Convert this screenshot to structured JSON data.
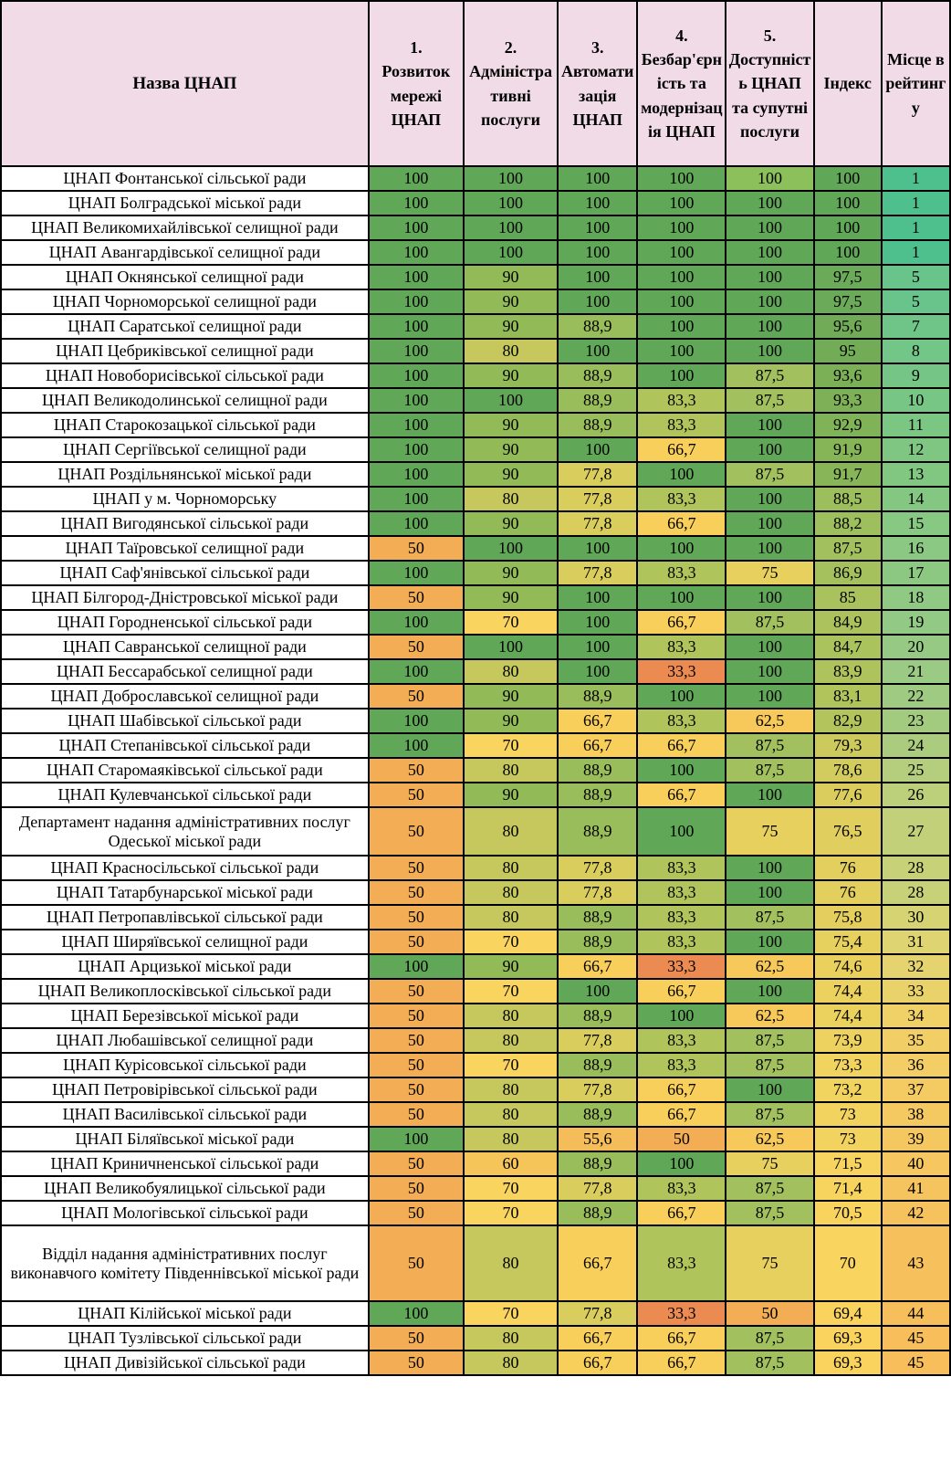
{
  "colors": {
    "header_bg": "#F0DBE6",
    "border": "#000000",
    "name_cell_bg": "#FFFFFF",
    "value_scale": [
      [
        33.3,
        "#EB8B51"
      ],
      [
        50,
        "#F3AE55"
      ],
      [
        55.6,
        "#F5BD59"
      ],
      [
        62.5,
        "#F7C95A"
      ],
      [
        66.7,
        "#F8CF5B"
      ],
      [
        70,
        "#F9D45E"
      ],
      [
        73,
        "#F2D35F"
      ],
      [
        75,
        "#E8D05E"
      ],
      [
        77.8,
        "#D9CD5E"
      ],
      [
        80,
        "#C6C85D"
      ],
      [
        83.3,
        "#B0C45C"
      ],
      [
        87.5,
        "#A2C05E"
      ],
      [
        88.9,
        "#9ABD5B"
      ],
      [
        90,
        "#92BA57"
      ],
      [
        95,
        "#73AC57"
      ],
      [
        100,
        "#61A758"
      ]
    ],
    "place_scale": [
      [
        1,
        "#4EC08E"
      ],
      [
        5,
        "#68C48A"
      ],
      [
        8,
        "#72C687"
      ],
      [
        12,
        "#7EC682"
      ],
      [
        16,
        "#8AC883"
      ],
      [
        20,
        "#95C984"
      ],
      [
        23,
        "#A3CB80"
      ],
      [
        26,
        "#BCCF7B"
      ],
      [
        28,
        "#C7D178"
      ],
      [
        31,
        "#DED471"
      ],
      [
        34,
        "#F0D167"
      ],
      [
        38,
        "#F5C962"
      ],
      [
        42,
        "#F6C25D"
      ],
      [
        45,
        "#F7BE5B"
      ]
    ],
    "overrides": [
      {
        "row": 0,
        "col": 4,
        "color": "#8CC05A"
      }
    ]
  },
  "chart_data": {
    "type": "table",
    "columns": [
      {
        "label": "Назва ЦНАП"
      },
      {
        "num": "1.",
        "label": "Розвиток мережі ЦНАП"
      },
      {
        "num": "2.",
        "label": "Адміністративні послуги"
      },
      {
        "num": "3.",
        "label": "Автоматизація ЦНАП"
      },
      {
        "num": "4.",
        "label": "Безбар'єрність та модернізація ЦНАП"
      },
      {
        "num": "5.",
        "label": "Доступність ЦНАП та супутні послуги"
      },
      {
        "label": "Індекс"
      },
      {
        "label": "Місце в рейтингу"
      }
    ],
    "rows": [
      {
        "name": "ЦНАП Фонтанської сільської ради",
        "values": [
          "100",
          "100",
          "100",
          "100",
          "100",
          "100"
        ],
        "place": "1"
      },
      {
        "name": "ЦНАП Болградської міської ради",
        "values": [
          "100",
          "100",
          "100",
          "100",
          "100",
          "100"
        ],
        "place": "1"
      },
      {
        "name": "ЦНАП Великомихайлівської селищної ради",
        "values": [
          "100",
          "100",
          "100",
          "100",
          "100",
          "100"
        ],
        "place": "1"
      },
      {
        "name": "ЦНАП Авангардівської селищної ради",
        "values": [
          "100",
          "100",
          "100",
          "100",
          "100",
          "100"
        ],
        "place": "1"
      },
      {
        "name": "ЦНАП Окнянської селищної ради",
        "values": [
          "100",
          "90",
          "100",
          "100",
          "100",
          "97,5"
        ],
        "place": "5"
      },
      {
        "name": "ЦНАП Чорноморської селищної ради",
        "values": [
          "100",
          "90",
          "100",
          "100",
          "100",
          "97,5"
        ],
        "place": "5"
      },
      {
        "name": "ЦНАП Саратської селищної ради",
        "values": [
          "100",
          "90",
          "88,9",
          "100",
          "100",
          "95,6"
        ],
        "place": "7"
      },
      {
        "name": "ЦНАП Цебриківської селищної ради",
        "values": [
          "100",
          "80",
          "100",
          "100",
          "100",
          "95"
        ],
        "place": "8"
      },
      {
        "name": "ЦНАП Новоборисівської сільської ради",
        "values": [
          "100",
          "90",
          "88,9",
          "100",
          "87,5",
          "93,6"
        ],
        "place": "9"
      },
      {
        "name": "ЦНАП Великодолинської селищної ради",
        "values": [
          "100",
          "100",
          "88,9",
          "83,3",
          "87,5",
          "93,3"
        ],
        "place": "10"
      },
      {
        "name": "ЦНАП Старокозацької сільської ради",
        "values": [
          "100",
          "90",
          "88,9",
          "83,3",
          "100",
          "92,9"
        ],
        "place": "11"
      },
      {
        "name": "ЦНАП Сергіївської селищної ради",
        "values": [
          "100",
          "90",
          "100",
          "66,7",
          "100",
          "91,9"
        ],
        "place": "12"
      },
      {
        "name": "ЦНАП Роздільнянської міської ради",
        "values": [
          "100",
          "90",
          "77,8",
          "100",
          "87,5",
          "91,7"
        ],
        "place": "13"
      },
      {
        "name": "ЦНАП у м. Чорноморську",
        "values": [
          "100",
          "80",
          "77,8",
          "83,3",
          "100",
          "88,5"
        ],
        "place": "14"
      },
      {
        "name": "ЦНАП Вигодянської сільської ради",
        "values": [
          "100",
          "90",
          "77,8",
          "66,7",
          "100",
          "88,2"
        ],
        "place": "15"
      },
      {
        "name": "ЦНАП Таїровської селищної ради",
        "values": [
          "50",
          "100",
          "100",
          "100",
          "100",
          "87,5"
        ],
        "place": "16"
      },
      {
        "name": "ЦНАП Саф'янівської сільської ради",
        "values": [
          "100",
          "90",
          "77,8",
          "83,3",
          "75",
          "86,9"
        ],
        "place": "17"
      },
      {
        "name": "ЦНАП Білгород-Дністровської міської ради",
        "values": [
          "50",
          "90",
          "100",
          "100",
          "100",
          "85"
        ],
        "place": "18"
      },
      {
        "name": "ЦНАП Городненської сільської ради",
        "values": [
          "100",
          "70",
          "100",
          "66,7",
          "87,5",
          "84,9"
        ],
        "place": "19"
      },
      {
        "name": "ЦНАП Савранської селищної ради",
        "values": [
          "50",
          "100",
          "100",
          "83,3",
          "100",
          "84,7"
        ],
        "place": "20"
      },
      {
        "name": "ЦНАП Бессарабської селищної ради",
        "values": [
          "100",
          "80",
          "100",
          "33,3",
          "100",
          "83,9"
        ],
        "place": "21"
      },
      {
        "name": "ЦНАП Доброславської селищної ради",
        "values": [
          "50",
          "90",
          "88,9",
          "100",
          "100",
          "83,1"
        ],
        "place": "22"
      },
      {
        "name": "ЦНАП Шабівської сільської ради",
        "values": [
          "100",
          "90",
          "66,7",
          "83,3",
          "62,5",
          "82,9"
        ],
        "place": "23"
      },
      {
        "name": "ЦНАП Степанівської сільської ради",
        "values": [
          "100",
          "70",
          "66,7",
          "66,7",
          "87,5",
          "79,3"
        ],
        "place": "24"
      },
      {
        "name": "ЦНАП Старомаяківської сільської ради",
        "values": [
          "50",
          "80",
          "88,9",
          "100",
          "87,5",
          "78,6"
        ],
        "place": "25"
      },
      {
        "name": "ЦНАП Кулевчанської сільської ради",
        "values": [
          "50",
          "90",
          "88,9",
          "66,7",
          "100",
          "77,6"
        ],
        "place": "26"
      },
      {
        "name": "Департамент надання адміністративних послуг Одеської міської ради",
        "values": [
          "50",
          "80",
          "88,9",
          "100",
          "75",
          "76,5"
        ],
        "place": "27"
      },
      {
        "name": "ЦНАП Красносільської сільської ради",
        "values": [
          "50",
          "80",
          "77,8",
          "83,3",
          "100",
          "76"
        ],
        "place": "28"
      },
      {
        "name": "ЦНАП Татарбунарської міської ради",
        "values": [
          "50",
          "80",
          "77,8",
          "83,3",
          "100",
          "76"
        ],
        "place": "28"
      },
      {
        "name": "ЦНАП Петропавлівської сільської ради",
        "values": [
          "50",
          "80",
          "88,9",
          "83,3",
          "87,5",
          "75,8"
        ],
        "place": "30"
      },
      {
        "name": "ЦНАП Ширяївської селищної ради",
        "values": [
          "50",
          "70",
          "88,9",
          "83,3",
          "100",
          "75,4"
        ],
        "place": "31"
      },
      {
        "name": "ЦНАП Арцизької міської ради",
        "values": [
          "100",
          "90",
          "66,7",
          "33,3",
          "62,5",
          "74,6"
        ],
        "place": "32"
      },
      {
        "name": "ЦНАП Великоплосківської сільської ради",
        "values": [
          "50",
          "70",
          "100",
          "66,7",
          "100",
          "74,4"
        ],
        "place": "33"
      },
      {
        "name": "ЦНАП Березівської міської ради",
        "values": [
          "50",
          "80",
          "88,9",
          "100",
          "62,5",
          "74,4"
        ],
        "place": "34"
      },
      {
        "name": "ЦНАП Любашівської селищної ради",
        "values": [
          "50",
          "80",
          "77,8",
          "83,3",
          "87,5",
          "73,9"
        ],
        "place": "35"
      },
      {
        "name": "ЦНАП Курісовської сільської ради",
        "values": [
          "50",
          "70",
          "88,9",
          "83,3",
          "87,5",
          "73,3"
        ],
        "place": "36"
      },
      {
        "name": "ЦНАП Петровірівської сільської ради",
        "values": [
          "50",
          "80",
          "77,8",
          "66,7",
          "100",
          "73,2"
        ],
        "place": "37"
      },
      {
        "name": "ЦНАП Василівської сільської ради",
        "values": [
          "50",
          "80",
          "88,9",
          "66,7",
          "87,5",
          "73"
        ],
        "place": "38"
      },
      {
        "name": "ЦНАП Біляївської міської ради",
        "values": [
          "100",
          "80",
          "55,6",
          "50",
          "62,5",
          "73"
        ],
        "place": "39"
      },
      {
        "name": "ЦНАП Криничненської сільської ради",
        "values": [
          "50",
          "60",
          "88,9",
          "100",
          "75",
          "71,5"
        ],
        "place": "40"
      },
      {
        "name": "ЦНАП Великобуялицької сільської ради",
        "values": [
          "50",
          "70",
          "77,8",
          "83,3",
          "87,5",
          "71,4"
        ],
        "place": "41"
      },
      {
        "name": "ЦНАП Мологівської сільської ради",
        "values": [
          "50",
          "70",
          "88,9",
          "66,7",
          "87,5",
          "70,5"
        ],
        "place": "42"
      },
      {
        "name": "Відділ надання адміністративних послуг виконавчого комітету Південнівської міської ради",
        "values": [
          "50",
          "80",
          "66,7",
          "83,3",
          "75",
          "70"
        ],
        "place": "43"
      },
      {
        "name": "ЦНАП Кілійської міської ради",
        "values": [
          "100",
          "70",
          "77,8",
          "33,3",
          "50",
          "69,4"
        ],
        "place": "44"
      },
      {
        "name": "ЦНАП Тузлівської сільської ради",
        "values": [
          "50",
          "80",
          "66,7",
          "66,7",
          "87,5",
          "69,3"
        ],
        "place": "45"
      },
      {
        "name": "ЦНАП Дивізійської сільської ради",
        "values": [
          "50",
          "80",
          "66,7",
          "66,7",
          "87,5",
          "69,3"
        ],
        "place": "45"
      }
    ]
  }
}
